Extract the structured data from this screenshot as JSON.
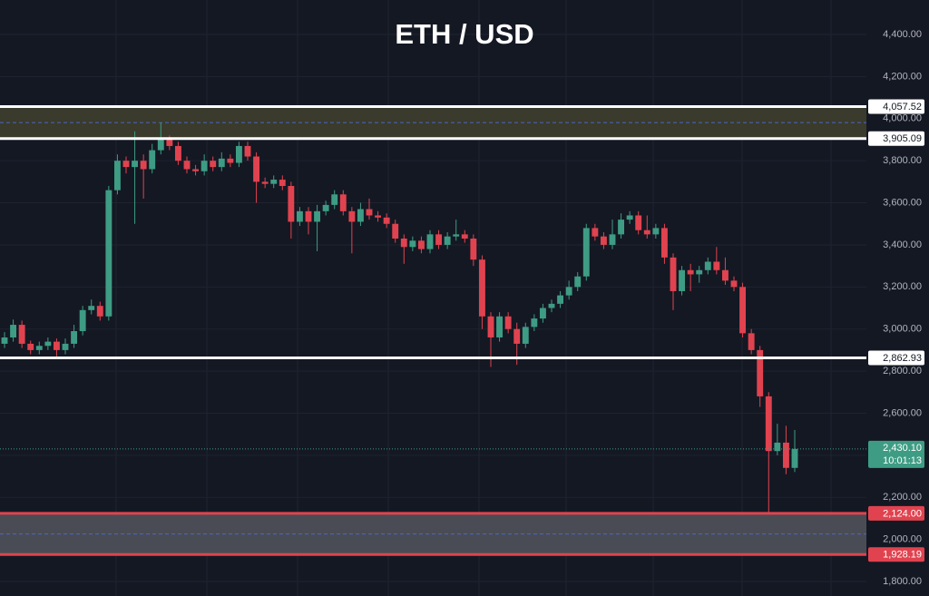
{
  "chart_data": {
    "type": "candlestick",
    "title": "ETH / USD",
    "up_color": "#3e9c84",
    "down_color": "#e0434f",
    "ylim": [
      1731,
      4564
    ],
    "yticks": [
      {
        "value": 1800,
        "label": "1,800.00"
      },
      {
        "value": 2000,
        "label": "2,000.00"
      },
      {
        "value": 2200,
        "label": "2,200.00"
      },
      {
        "value": 2400,
        "label": "2,400.00"
      },
      {
        "value": 2600,
        "label": "2,600.00"
      },
      {
        "value": 2800,
        "label": "2,800.00"
      },
      {
        "value": 3000,
        "label": "3,000.00"
      },
      {
        "value": 3200,
        "label": "3,200.00"
      },
      {
        "value": 3400,
        "label": "3,400.00"
      },
      {
        "value": 3600,
        "label": "3,600.00"
      },
      {
        "value": 3800,
        "label": "3,800.00"
      },
      {
        "value": 4000,
        "label": "4,000.00"
      },
      {
        "value": 4200,
        "label": "4,200.00"
      },
      {
        "value": 4400,
        "label": "4,400.00"
      }
    ],
    "levels": [
      {
        "value": 4057.52,
        "label": "4,057.52",
        "color": "#ffffff"
      },
      {
        "value": 3905.09,
        "label": "3,905.09",
        "color": "#ffffff"
      },
      {
        "value": 2862.93,
        "label": "2,862.93",
        "color": "#ffffff"
      },
      {
        "value": 2124.0,
        "label": "2,124.00",
        "color": "#e0434f"
      },
      {
        "value": 1928.19,
        "label": "1,928.19",
        "color": "#e0434f"
      }
    ],
    "zones": [
      {
        "levels": [
          0,
          1
        ],
        "color": "#3a3b2c"
      },
      {
        "levels": [
          3,
          4
        ],
        "color": "#4a4c55"
      }
    ],
    "current_price": {
      "value": 2430.1,
      "label": "2,430.10",
      "countdown": "10:01:13"
    },
    "ohlc": [
      [
        2930,
        2985,
        2910,
        2960
      ],
      [
        2960,
        3045,
        2940,
        3020
      ],
      [
        3020,
        3040,
        2910,
        2930
      ],
      [
        2930,
        2945,
        2880,
        2900
      ],
      [
        2900,
        2940,
        2880,
        2920
      ],
      [
        2920,
        2960,
        2900,
        2940
      ],
      [
        2940,
        2955,
        2870,
        2900
      ],
      [
        2900,
        2955,
        2880,
        2930
      ],
      [
        2930,
        3020,
        2910,
        2990
      ],
      [
        2990,
        3110,
        2970,
        3090
      ],
      [
        3090,
        3140,
        3070,
        3110
      ],
      [
        3110,
        3130,
        3040,
        3060
      ],
      [
        3060,
        3680,
        3040,
        3660
      ],
      [
        3660,
        3830,
        3640,
        3800
      ],
      [
        3800,
        3820,
        3740,
        3770
      ],
      [
        3770,
        3940,
        3500,
        3800
      ],
      [
        3800,
        3830,
        3620,
        3760
      ],
      [
        3760,
        3880,
        3740,
        3850
      ],
      [
        3850,
        3980,
        3830,
        3900
      ],
      [
        3900,
        3920,
        3850,
        3870
      ],
      [
        3870,
        3890,
        3780,
        3800
      ],
      [
        3800,
        3820,
        3740,
        3760
      ],
      [
        3760,
        3780,
        3730,
        3750
      ],
      [
        3750,
        3830,
        3730,
        3800
      ],
      [
        3800,
        3820,
        3750,
        3770
      ],
      [
        3770,
        3840,
        3750,
        3810
      ],
      [
        3810,
        3830,
        3770,
        3790
      ],
      [
        3790,
        3890,
        3770,
        3870
      ],
      [
        3870,
        3890,
        3800,
        3820
      ],
      [
        3820,
        3840,
        3600,
        3700
      ],
      [
        3700,
        3720,
        3670,
        3690
      ],
      [
        3690,
        3730,
        3670,
        3710
      ],
      [
        3710,
        3730,
        3660,
        3680
      ],
      [
        3680,
        3700,
        3430,
        3510
      ],
      [
        3510,
        3580,
        3490,
        3560
      ],
      [
        3560,
        3580,
        3450,
        3510
      ],
      [
        3510,
        3590,
        3370,
        3560
      ],
      [
        3560,
        3610,
        3540,
        3590
      ],
      [
        3590,
        3660,
        3570,
        3640
      ],
      [
        3640,
        3660,
        3540,
        3560
      ],
      [
        3560,
        3580,
        3360,
        3510
      ],
      [
        3510,
        3600,
        3490,
        3570
      ],
      [
        3570,
        3620,
        3520,
        3540
      ],
      [
        3540,
        3560,
        3510,
        3530
      ],
      [
        3530,
        3550,
        3480,
        3500
      ],
      [
        3500,
        3520,
        3410,
        3430
      ],
      [
        3430,
        3450,
        3310,
        3390
      ],
      [
        3390,
        3440,
        3370,
        3420
      ],
      [
        3420,
        3440,
        3360,
        3380
      ],
      [
        3380,
        3470,
        3360,
        3450
      ],
      [
        3450,
        3470,
        3380,
        3400
      ],
      [
        3400,
        3460,
        3380,
        3440
      ],
      [
        3440,
        3520,
        3420,
        3450
      ],
      [
        3450,
        3470,
        3410,
        3430
      ],
      [
        3430,
        3450,
        3300,
        3330
      ],
      [
        3330,
        3350,
        3000,
        3060
      ],
      [
        3060,
        3080,
        2820,
        2960
      ],
      [
        2960,
        3080,
        2940,
        3060
      ],
      [
        3060,
        3080,
        2980,
        3000
      ],
      [
        3000,
        3030,
        2830,
        2930
      ],
      [
        2930,
        3030,
        2910,
        3010
      ],
      [
        3010,
        3070,
        2990,
        3050
      ],
      [
        3050,
        3120,
        3030,
        3100
      ],
      [
        3100,
        3140,
        3080,
        3120
      ],
      [
        3120,
        3180,
        3100,
        3160
      ],
      [
        3160,
        3230,
        3140,
        3200
      ],
      [
        3200,
        3270,
        3180,
        3250
      ],
      [
        3250,
        3500,
        3230,
        3480
      ],
      [
        3480,
        3500,
        3420,
        3440
      ],
      [
        3440,
        3460,
        3380,
        3400
      ],
      [
        3400,
        3520,
        3380,
        3450
      ],
      [
        3450,
        3550,
        3430,
        3520
      ],
      [
        3520,
        3560,
        3500,
        3540
      ],
      [
        3540,
        3560,
        3450,
        3470
      ],
      [
        3470,
        3540,
        3430,
        3450
      ],
      [
        3450,
        3500,
        3430,
        3480
      ],
      [
        3480,
        3500,
        3310,
        3340
      ],
      [
        3340,
        3360,
        3090,
        3180
      ],
      [
        3180,
        3300,
        3160,
        3280
      ],
      [
        3280,
        3310,
        3180,
        3260
      ],
      [
        3260,
        3300,
        3220,
        3280
      ],
      [
        3280,
        3340,
        3260,
        3320
      ],
      [
        3320,
        3390,
        3260,
        3280
      ],
      [
        3280,
        3340,
        3210,
        3230
      ],
      [
        3230,
        3250,
        3180,
        3200
      ],
      [
        3200,
        3220,
        2960,
        2980
      ],
      [
        2980,
        3000,
        2880,
        2900
      ],
      [
        2900,
        2920,
        2630,
        2680
      ],
      [
        2680,
        2700,
        2124,
        2420
      ],
      [
        2420,
        2550,
        2400,
        2460
      ],
      [
        2460,
        2540,
        2310,
        2340
      ],
      [
        2340,
        2520,
        2320,
        2430.1
      ]
    ]
  }
}
